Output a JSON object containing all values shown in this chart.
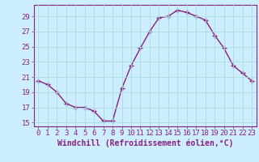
{
  "x": [
    0,
    1,
    2,
    3,
    4,
    5,
    6,
    7,
    8,
    9,
    10,
    11,
    12,
    13,
    14,
    15,
    16,
    17,
    18,
    19,
    20,
    21,
    22,
    23
  ],
  "y": [
    20.5,
    20.0,
    19.0,
    17.5,
    17.0,
    17.0,
    16.5,
    15.2,
    15.2,
    19.5,
    22.5,
    24.8,
    27.0,
    28.8,
    29.0,
    29.8,
    29.5,
    29.0,
    28.5,
    26.5,
    24.8,
    22.5,
    21.5,
    20.5
  ],
  "line_color": "#892080",
  "marker": "+",
  "markersize": 4,
  "linewidth": 1.0,
  "background_color": "#cceeff",
  "grid_color": "#aadddd",
  "xlabel": "Windchill (Refroidissement éolien,°C)",
  "xlabel_fontsize": 7,
  "tick_fontsize": 6.5,
  "xlim": [
    -0.5,
    23.5
  ],
  "ylim": [
    14.5,
    30.5
  ],
  "yticks": [
    15,
    17,
    19,
    21,
    23,
    25,
    27,
    29
  ],
  "xticks": [
    0,
    1,
    2,
    3,
    4,
    5,
    6,
    7,
    8,
    9,
    10,
    11,
    12,
    13,
    14,
    15,
    16,
    17,
    18,
    19,
    20,
    21,
    22,
    23
  ]
}
